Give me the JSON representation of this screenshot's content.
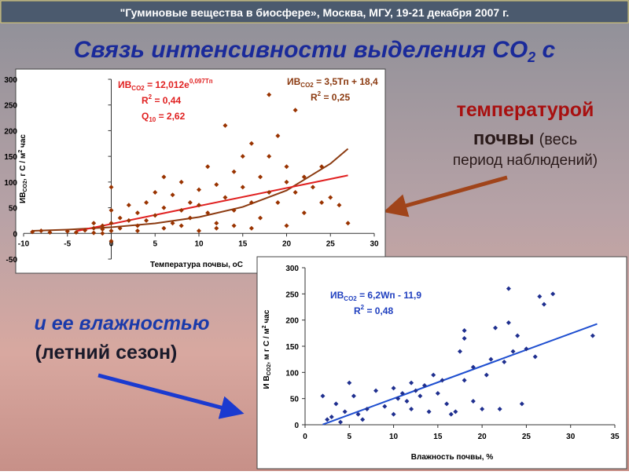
{
  "header": "\"Гуминовые вещества в биосфере», Москва, МГУ, 19-21 декабря 2007 г.",
  "title": [
    "Связь интенсивности выделения CO",
    "2",
    " с"
  ],
  "caption_temp": [
    "температурой",
    "почвы",
    "(весь",
    "период наблюдений)"
  ],
  "caption_moist": [
    "и ее влажностью",
    "(летний сезон)"
  ],
  "chart_data": [
    {
      "type": "scatter",
      "color": "#993300",
      "xlabel": "Температура почвы, оС",
      "ylabel": [
        "ИВ",
        "CO2",
        ", г С / м",
        "2",
        " час"
      ],
      "xlim": [
        -10,
        30
      ],
      "xticks": [
        -10,
        -5,
        0,
        5,
        10,
        15,
        20,
        25,
        30
      ],
      "ylim": [
        -50,
        300
      ],
      "yticks": [
        -50,
        0,
        50,
        100,
        150,
        200,
        250,
        300
      ],
      "x": [
        -9,
        -8,
        -7,
        -5,
        -4,
        -3,
        -2,
        -2,
        -1,
        -1,
        -1,
        0,
        0,
        0,
        0,
        0,
        1,
        1,
        2,
        2,
        3,
        3,
        4,
        4,
        5,
        5,
        6,
        6,
        7,
        7,
        8,
        8,
        9,
        9,
        10,
        10,
        11,
        11,
        12,
        12,
        13,
        13,
        14,
        14,
        15,
        15,
        16,
        16,
        17,
        17,
        18,
        18,
        18,
        19,
        19,
        20,
        20,
        21,
        21,
        22,
        22,
        23,
        24,
        24,
        25,
        26,
        27,
        -2,
        3,
        6,
        8,
        10,
        12,
        14,
        16,
        20
      ],
      "values": [
        3,
        5,
        2,
        4,
        2,
        6,
        10,
        1,
        8,
        15,
        0,
        45,
        20,
        5,
        -15,
        90,
        10,
        30,
        55,
        25,
        15,
        40,
        60,
        25,
        80,
        35,
        110,
        50,
        20,
        75,
        45,
        100,
        60,
        30,
        85,
        55,
        130,
        40,
        95,
        20,
        210,
        70,
        120,
        45,
        150,
        90,
        60,
        175,
        110,
        30,
        270,
        80,
        150,
        190,
        60,
        100,
        130,
        240,
        80,
        110,
        40,
        90,
        60,
        130,
        70,
        55,
        20,
        20,
        5,
        10,
        15,
        5,
        10,
        15,
        10,
        15
      ],
      "trends": [
        {
          "color": "#8b3a10",
          "x": [
            -9,
            -5,
            0,
            5,
            10,
            15,
            20,
            25,
            27
          ],
          "values": [
            5.0,
            7.4,
            12.0,
            19.5,
            31.7,
            51.5,
            83.6,
            135.7,
            164.8
          ]
        },
        {
          "color": "#e02020",
          "x": [
            -4,
            27
          ],
          "values": [
            4.4,
            112.9
          ]
        }
      ],
      "annotations": [
        {
          "color": "#e02020",
          "parts": [
            [
              "ИВ",
              "CO2",
              " = 12,012e",
              "0,097Tп"
            ],
            [
              "R",
              "2",
              " = 0,44"
            ],
            [
              "Q",
              "10",
              " = 2,62"
            ]
          ]
        },
        {
          "color": "#8b3a10",
          "parts": [
            [
              "ИВ",
              "CO2",
              " = 3,5Tп + 18,4"
            ],
            [
              "R",
              "2",
              " = 0,25"
            ]
          ]
        }
      ]
    },
    {
      "type": "scatter",
      "color": "#1f2f8f",
      "xlabel": "Влажность почвы, %",
      "ylabel": [
        "И В",
        "CO2",
        ", м г С / м",
        "2",
        " час"
      ],
      "xlim": [
        0,
        35
      ],
      "xticks": [
        0,
        5,
        10,
        15,
        20,
        25,
        30,
        35
      ],
      "ylim": [
        0,
        300
      ],
      "yticks": [
        0,
        50,
        100,
        150,
        200,
        250,
        300
      ],
      "x": [
        2,
        2.5,
        3,
        3.5,
        4,
        4.5,
        5,
        5.5,
        6,
        6.5,
        7,
        8,
        9,
        10,
        10,
        10.5,
        11,
        11.5,
        12,
        12,
        12.5,
        13,
        13.5,
        14,
        14.5,
        15,
        15.5,
        16,
        16.5,
        17,
        17.5,
        18,
        18,
        19,
        19,
        20,
        20.5,
        21,
        21.5,
        22,
        22.5,
        23,
        23,
        24,
        24.5,
        25,
        26,
        26.5,
        27,
        28,
        32.5,
        18,
        23.5
      ],
      "values": [
        55,
        10,
        15,
        40,
        5,
        25,
        80,
        55,
        20,
        10,
        30,
        65,
        35,
        20,
        70,
        50,
        60,
        45,
        80,
        30,
        65,
        55,
        75,
        25,
        95,
        60,
        85,
        40,
        20,
        25,
        140,
        165,
        85,
        110,
        45,
        30,
        95,
        125,
        185,
        30,
        120,
        195,
        260,
        170,
        40,
        145,
        130,
        245,
        230,
        250,
        170,
        180,
        140
      ],
      "trends": [
        {
          "color": "#1f4fd0",
          "x": [
            2,
            33
          ],
          "values": [
            0.5,
            192.7
          ]
        }
      ],
      "annotations": [
        {
          "color": "#1f3fbf",
          "parts": [
            [
              "ИВ",
              "CO2",
              " = 6,2Wп - 11,9"
            ],
            [
              "R",
              "2",
              " = 0,48"
            ]
          ]
        }
      ]
    }
  ]
}
